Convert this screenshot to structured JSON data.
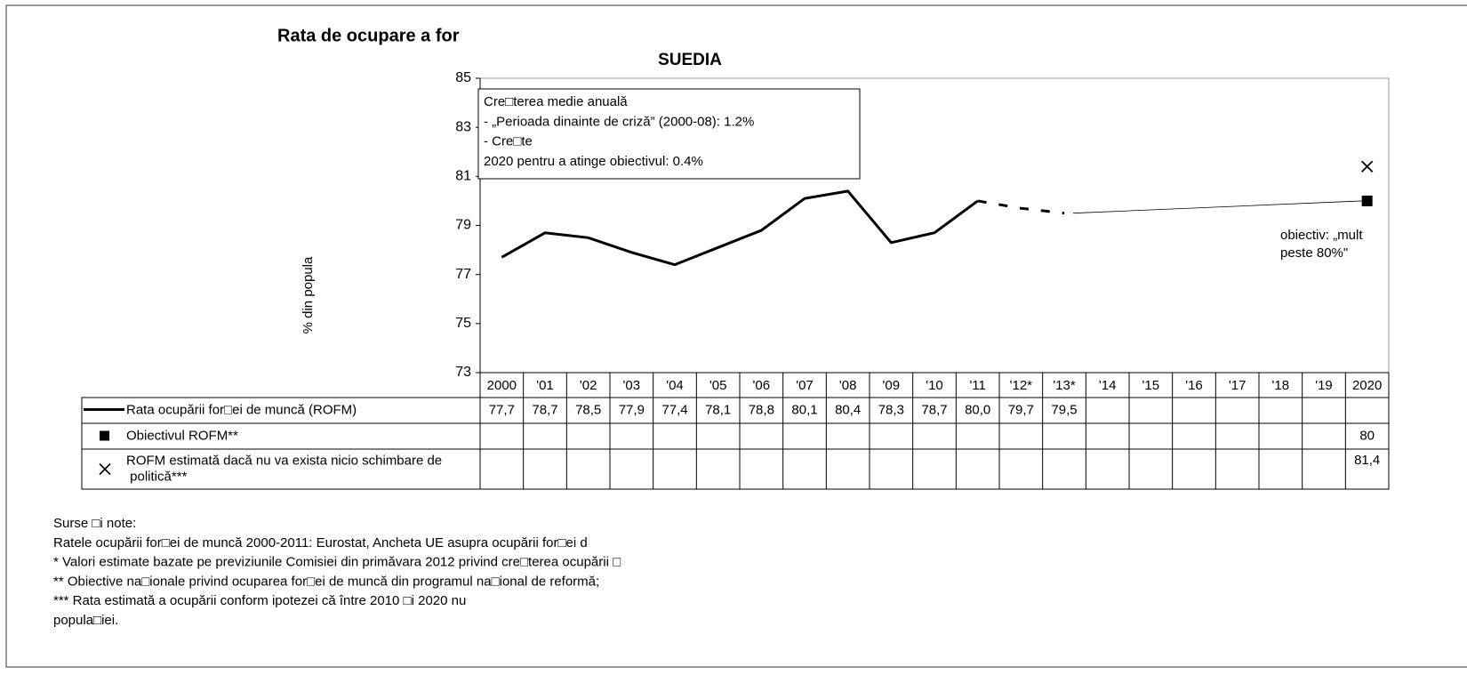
{
  "chart_data": {
    "type": "line",
    "title": "Rata de ocupare a for",
    "subtitle": "SUEDIA",
    "y_label": "% din popula",
    "categories": [
      "2000",
      "'01",
      "'02",
      "'03",
      "'04",
      "'05",
      "'06",
      "'07",
      "'08",
      "'09",
      "'10",
      "'11",
      "'12*",
      "'13*",
      "'14",
      "'15",
      "'16",
      "'17",
      "'18",
      "'19",
      "2020"
    ],
    "ylim": [
      73,
      85
    ],
    "yticks": [
      73,
      75,
      77,
      79,
      81,
      83,
      85
    ],
    "dashed_after": "'11",
    "series": [
      {
        "name": "Rata ocupării for□ei de muncă (ROFM)",
        "color": "#000000",
        "marker": "line",
        "values": [
          77.7,
          78.7,
          78.5,
          77.9,
          77.4,
          78.1,
          78.8,
          80.1,
          80.4,
          78.3,
          78.7,
          80.0,
          79.7,
          79.5,
          null,
          null,
          null,
          null,
          null,
          null,
          null
        ],
        "value_labels": [
          "77,7",
          "78,7",
          "78,5",
          "77,9",
          "77,4",
          "78,1",
          "78,8",
          "80,1",
          "80,4",
          "78,3",
          "78,7",
          "80,0",
          "79,7",
          "79,5",
          null,
          null,
          null,
          null,
          null,
          null,
          null
        ]
      },
      {
        "name": "Obiectivul ROFM**",
        "color": "#000000",
        "marker": "square",
        "values": [
          null,
          null,
          null,
          null,
          null,
          null,
          null,
          null,
          null,
          null,
          null,
          null,
          null,
          null,
          null,
          null,
          null,
          null,
          null,
          null,
          80
        ]
      },
      {
        "name": "ROFM estimată dacă nu va exista nicio schimbare de politică***",
        "color": "#000000",
        "marker": "x",
        "values": [
          null,
          null,
          null,
          null,
          null,
          null,
          null,
          null,
          null,
          null,
          null,
          null,
          null,
          null,
          null,
          null,
          null,
          null,
          null,
          null,
          81.4
        ],
        "value_labels": [
          null,
          null,
          null,
          null,
          null,
          null,
          null,
          null,
          null,
          null,
          null,
          null,
          null,
          null,
          null,
          null,
          null,
          null,
          null,
          null,
          "81,4"
        ]
      }
    ],
    "annotation_box": [
      "Cre□terea medie anuală",
      "- „Perioada dinainte de criză” (2000-08): 1.2%",
      "- Cre□te",
      "2020 pentru a atinge obiectivul: 0.4%"
    ],
    "target_note": [
      "obiectiv: „mult",
      "peste 80%\""
    ]
  },
  "notes": [
    "Surse □i note:",
    "Ratele ocupării for□ei de muncă 2000-2011: Eurostat, Ancheta UE asupra ocupării for□ei d",
    "* Valori estimate bazate pe previziunile Comisiei din primăvara 2012 privind cre□terea ocupării □",
    "** Obiective na□ionale privind ocuparea for□ei de muncă din programul na□ional de reformă;",
    "*** Rata estimată a ocupării conform ipotezei că între 2010 □i 2020 nu",
    "popula□iei."
  ]
}
